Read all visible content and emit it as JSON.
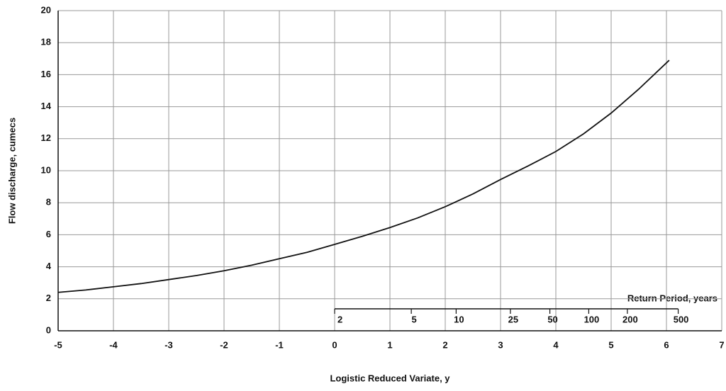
{
  "chart_data": {
    "type": "line",
    "xlabel": "Logistic Reduced Variate, y",
    "ylabel": "Flow discharge, cumecs",
    "x": [
      -5,
      -4.5,
      -4,
      -3.5,
      -3,
      -2.5,
      -2,
      -1.5,
      -1,
      -0.5,
      0,
      0.5,
      1,
      1.5,
      2,
      2.5,
      3,
      3.5,
      4,
      4.5,
      5,
      5.5,
      6.05
    ],
    "series": [
      {
        "name": "Flow discharge",
        "color": "#111111",
        "values": [
          2.4,
          2.55,
          2.75,
          2.95,
          3.2,
          3.45,
          3.75,
          4.1,
          4.5,
          4.9,
          5.4,
          5.9,
          6.45,
          7.05,
          7.75,
          8.55,
          9.45,
          10.3,
          11.2,
          12.3,
          13.6,
          15.1,
          16.9
        ]
      }
    ],
    "xlim": [
      -5,
      7
    ],
    "xticks": [
      -5,
      -4,
      -3,
      -2,
      -1,
      0,
      1,
      2,
      3,
      4,
      5,
      6,
      7
    ],
    "ylim": [
      0,
      20
    ],
    "yticks": [
      0,
      2,
      4,
      6,
      8,
      10,
      12,
      14,
      16,
      18,
      20
    ],
    "grid": true,
    "x2label": "Return Period, years",
    "x2scale": "logistic",
    "x2ticks": [
      2,
      5,
      10,
      25,
      50,
      100,
      200,
      500
    ]
  }
}
